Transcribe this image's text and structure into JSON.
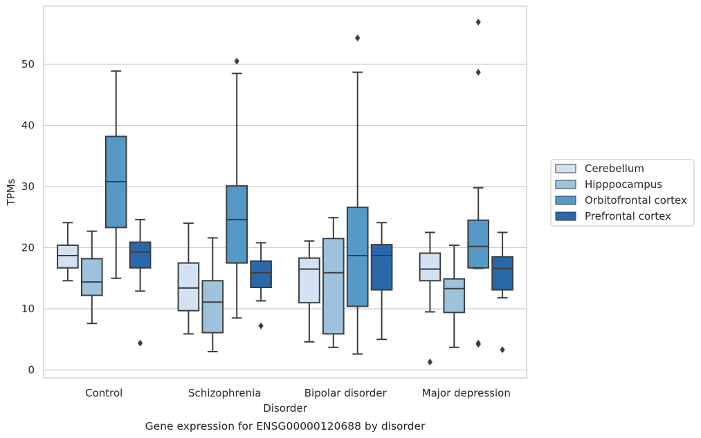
{
  "chart_data": {
    "type": "box",
    "xlabel": "Disorder",
    "ylabel": "TPMs",
    "caption": "Gene expression for ENSG00000120688 by disorder",
    "ylim": [
      -1.3,
      59.5
    ],
    "yticks": [
      0,
      10,
      20,
      30,
      40,
      50
    ],
    "grid": "horizontal",
    "legend_position": "right",
    "categories": [
      "Control",
      "Schizophrenia",
      "Bipolar disorder",
      "Major depression"
    ],
    "series": [
      {
        "name": "Cerebellum",
        "color": "#d2e2f2",
        "boxes": [
          {
            "whisker_low": 14.6,
            "q1": 16.7,
            "median": 18.7,
            "q3": 20.4,
            "whisker_high": 24.1,
            "outliers": []
          },
          {
            "whisker_low": 5.9,
            "q1": 9.7,
            "median": 13.4,
            "q3": 17.5,
            "whisker_high": 24.0,
            "outliers": []
          },
          {
            "whisker_low": 4.6,
            "q1": 11.0,
            "median": 16.5,
            "q3": 18.3,
            "whisker_high": 21.1,
            "outliers": []
          },
          {
            "whisker_low": 9.5,
            "q1": 14.6,
            "median": 16.5,
            "q3": 19.1,
            "whisker_high": 22.5,
            "outliers": [
              1.3
            ]
          }
        ]
      },
      {
        "name": "Hipppocampus",
        "color": "#9cc2dc",
        "boxes": [
          {
            "whisker_low": 7.6,
            "q1": 12.2,
            "median": 14.4,
            "q3": 18.2,
            "whisker_high": 22.7,
            "outliers": []
          },
          {
            "whisker_low": 3.0,
            "q1": 6.1,
            "median": 11.1,
            "q3": 14.6,
            "whisker_high": 21.6,
            "outliers": []
          },
          {
            "whisker_low": 3.7,
            "q1": 5.9,
            "median": 15.9,
            "q3": 21.5,
            "whisker_high": 24.9,
            "outliers": []
          },
          {
            "whisker_low": 3.7,
            "q1": 9.4,
            "median": 13.3,
            "q3": 14.9,
            "whisker_high": 20.4,
            "outliers": []
          }
        ]
      },
      {
        "name": "Orbitofrontal cortex",
        "color": "#5799c6",
        "boxes": [
          {
            "whisker_low": 15.0,
            "q1": 23.3,
            "median": 30.8,
            "q3": 38.2,
            "whisker_high": 48.9,
            "outliers": []
          },
          {
            "whisker_low": 8.5,
            "q1": 17.5,
            "median": 24.6,
            "q3": 30.1,
            "whisker_high": 48.5,
            "outliers": [
              50.5
            ]
          },
          {
            "whisker_low": 2.6,
            "q1": 10.4,
            "median": 18.7,
            "q3": 26.6,
            "whisker_high": 48.7,
            "outliers": [
              54.3
            ]
          },
          {
            "whisker_low": 16.6,
            "q1": 16.7,
            "median": 20.2,
            "q3": 24.5,
            "whisker_high": 29.8,
            "outliers": [
              4.2,
              4.4,
              48.7,
              56.9
            ]
          }
        ]
      },
      {
        "name": "Prefrontal cortex",
        "color": "#2a69a9",
        "boxes": [
          {
            "whisker_low": 12.9,
            "q1": 16.7,
            "median": 19.3,
            "q3": 20.9,
            "whisker_high": 24.6,
            "outliers": [
              4.4
            ]
          },
          {
            "whisker_low": 11.3,
            "q1": 13.5,
            "median": 15.9,
            "q3": 17.8,
            "whisker_high": 20.8,
            "outliers": [
              7.2
            ]
          },
          {
            "whisker_low": 5.0,
            "q1": 13.1,
            "median": 18.7,
            "q3": 20.5,
            "whisker_high": 24.1,
            "outliers": []
          },
          {
            "whisker_low": 11.8,
            "q1": 13.1,
            "median": 16.6,
            "q3": 18.5,
            "whisker_high": 22.5,
            "outliers": [
              3.3
            ]
          }
        ]
      }
    ]
  }
}
